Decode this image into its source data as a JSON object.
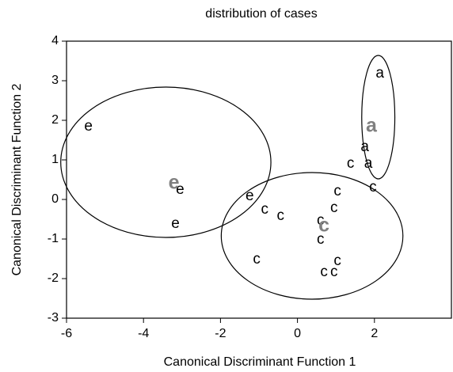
{
  "chart_data": {
    "type": "scatter",
    "title": "distribution of cases",
    "xlabel": "Canonical Discriminant Function 1",
    "ylabel": "Canonical Discriminant Function 2",
    "xlim": [
      -6,
      4
    ],
    "ylim": [
      -3,
      4
    ],
    "xticks": [
      -6,
      -4,
      -2,
      0,
      2
    ],
    "yticks": [
      -3,
      -2,
      -1,
      0,
      1,
      2,
      3,
      4
    ],
    "centroid_color": "#808080",
    "series": [
      {
        "name": "a",
        "color": "#000000",
        "x": [
          2.14,
          1.75,
          1.84
        ],
        "y": [
          3.18,
          1.32,
          0.9
        ],
        "centroid": {
          "x": 1.92,
          "y": 1.84
        },
        "ellipse": {
          "cx": 2.1,
          "cy": 2.08,
          "rx": 0.43,
          "ry": 1.56
        }
      },
      {
        "name": "c",
        "color": "#000000",
        "x": [
          1.38,
          1.96,
          1.04,
          0.95,
          -0.85,
          -0.44,
          0.6,
          0.6,
          -1.06,
          1.04,
          0.69,
          0.95
        ],
        "y": [
          0.9,
          0.3,
          0.2,
          -0.22,
          -0.26,
          -0.42,
          -0.54,
          -1.02,
          -1.52,
          -1.56,
          -1.84,
          -1.84
        ],
        "centroid": {
          "x": 0.69,
          "y": -0.68
        },
        "ellipse": {
          "cx": 0.38,
          "cy": -0.92,
          "rx": 2.36,
          "ry": 1.6
        }
      },
      {
        "name": "e",
        "color": "#000000",
        "x": [
          -5.43,
          -3.05,
          -3.17,
          -1.24
        ],
        "y": [
          1.84,
          0.24,
          -0.62,
          0.08
        ],
        "centroid": {
          "x": -3.21,
          "y": 0.4
        },
        "ellipse": {
          "cx": -3.42,
          "cy": 0.94,
          "rx": 2.73,
          "ry": 1.9
        }
      }
    ]
  }
}
